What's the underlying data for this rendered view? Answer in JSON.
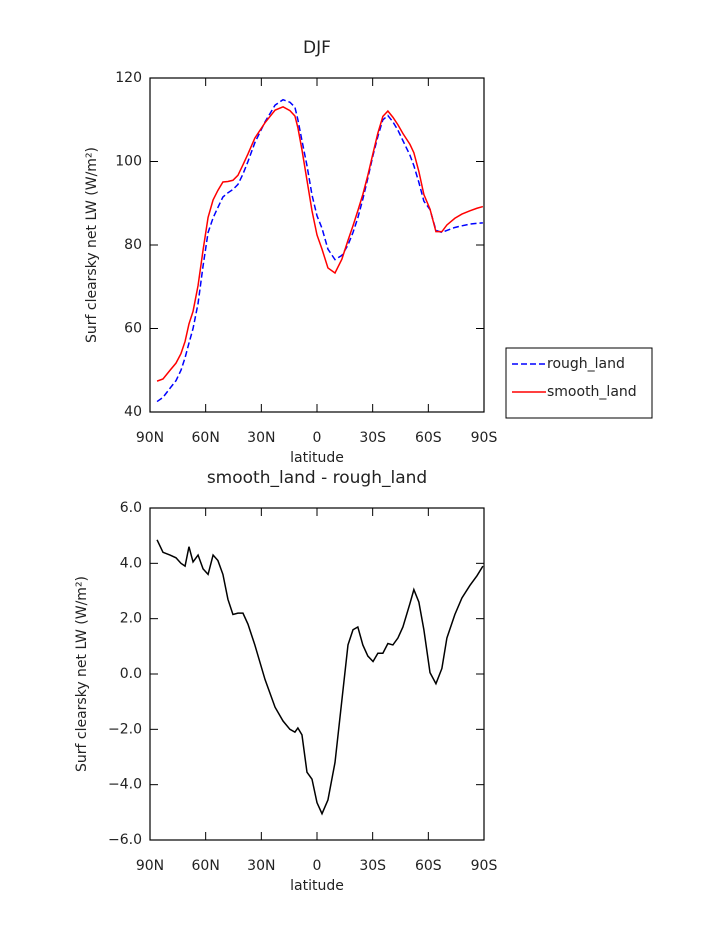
{
  "chart_data": [
    {
      "type": "line",
      "title": "DJF",
      "xlabel": "latitude",
      "ylabel": "Surf clearsky net LW (W/m²)",
      "x": [
        86.2,
        83,
        79.2,
        76,
        73.3,
        71.1,
        69,
        66.8,
        64.1,
        61.4,
        58.7,
        56,
        53.4,
        50.7,
        48,
        45.3,
        42.6,
        39.9,
        37.2,
        33.5,
        28,
        22.6,
        18.3,
        14.6,
        11.9,
        10.3,
        8.1,
        5.4,
        2.7,
        0,
        -2.7,
        -5.9,
        -9.7,
        -13.4,
        -16.7,
        -19.4,
        -22,
        -24.7,
        -27.4,
        -30.2,
        -32.8,
        -35.5,
        -38.2,
        -40.9,
        -43.6,
        -46.3,
        -50.1,
        -52.2,
        -54.9,
        -57.6,
        -60.9,
        -64.1,
        -67.3,
        -70,
        -74.3,
        -78.1,
        -82.4,
        -86.2,
        -89.4
      ],
      "series": [
        {
          "name": "rough_land",
          "color": "#0000ff",
          "line_style": "dashed",
          "values": [
            42.5,
            43.5,
            45.7,
            47.5,
            50,
            53,
            56.5,
            60,
            66,
            75,
            83,
            86.5,
            89,
            91.5,
            92.5,
            93.3,
            94.5,
            97,
            100,
            104.5,
            109.5,
            113.5,
            114.8,
            114.2,
            113,
            110,
            105,
            99,
            92,
            87,
            84,
            79,
            76.5,
            77.5,
            80,
            83,
            86.5,
            91,
            96,
            101.5,
            106,
            110,
            111,
            109.5,
            107.5,
            105,
            101.5,
            99,
            95,
            90.5,
            88.5,
            83.5,
            83,
            83.5,
            84.2,
            84.6,
            85,
            85.2,
            85.3
          ]
        },
        {
          "name": "smooth_land",
          "color": "#ff0000",
          "line_style": "solid",
          "values": [
            47.4,
            47.9,
            50.0,
            51.7,
            54.0,
            56.9,
            61.1,
            64.1,
            70.3,
            78.8,
            86.6,
            90.8,
            93.1,
            95.1,
            95.2,
            95.5,
            96.7,
            99.2,
            101.8,
            105.6,
            109.3,
            112.3,
            113.1,
            112.2,
            110.9,
            108.1,
            102.8,
            95.5,
            88.2,
            82.4,
            79.0,
            74.5,
            73.3,
            76.6,
            81.1,
            84.6,
            88.2,
            92.1,
            96.7,
            102.0,
            106.8,
            110.8,
            112.1,
            110.6,
            108.8,
            106.7,
            104.1,
            102.1,
            97.6,
            92.1,
            88.6,
            83.2,
            83.2,
            84.8,
            86.4,
            87.4,
            88.2,
            88.8,
            89.2
          ]
        }
      ],
      "xlim": [
        90,
        -90
      ],
      "xticks": [
        {
          "value": 90,
          "label": "90N"
        },
        {
          "value": 60,
          "label": "60N"
        },
        {
          "value": 30,
          "label": "30N"
        },
        0,
        {
          "value": -30,
          "label": "30S"
        },
        {
          "value": -60,
          "label": "60S"
        },
        {
          "value": -90,
          "label": "90S"
        }
      ],
      "ylim": [
        40,
        120
      ],
      "yticks": [
        40,
        60,
        80,
        100,
        120
      ],
      "legend": "right"
    },
    {
      "type": "line",
      "title": "smooth_land - rough_land",
      "xlabel": "latitude",
      "ylabel": "Surf clearsky net LW (W/m²)",
      "x": [
        86.2,
        83,
        79.2,
        76,
        73.3,
        71.1,
        69,
        66.8,
        64.1,
        61.4,
        58.7,
        56,
        53.4,
        50.7,
        48,
        45.3,
        42.6,
        39.9,
        37.2,
        33.5,
        28,
        22.6,
        18.3,
        14.6,
        11.9,
        10.3,
        8.1,
        5.4,
        2.7,
        0,
        -2.7,
        -5.9,
        -9.7,
        -13.4,
        -16.7,
        -19.4,
        -22,
        -24.7,
        -27.4,
        -30.2,
        -32.8,
        -35.5,
        -38.2,
        -40.9,
        -43.6,
        -46.3,
        -50.1,
        -52.2,
        -54.9,
        -57.6,
        -60.9,
        -64.1,
        -67.3,
        -70,
        -74.3,
        -78.1,
        -82.4,
        -86.2,
        -89.4
      ],
      "series": [
        {
          "color": "#000000",
          "line_style": "solid",
          "values": [
            4.85,
            4.4,
            4.3,
            4.2,
            4.0,
            3.9,
            4.6,
            4.05,
            4.3,
            3.8,
            3.6,
            4.3,
            4.1,
            3.6,
            2.7,
            2.15,
            2.2,
            2.2,
            1.8,
            1.05,
            -0.2,
            -1.2,
            -1.7,
            -2.0,
            -2.1,
            -1.95,
            -2.2,
            -3.55,
            -3.8,
            -4.65,
            -5.05,
            -4.55,
            -3.2,
            -0.95,
            1.05,
            1.6,
            1.7,
            1.05,
            0.65,
            0.45,
            0.75,
            0.75,
            1.1,
            1.05,
            1.3,
            1.7,
            2.55,
            3.05,
            2.6,
            1.6,
            0.05,
            -0.35,
            0.2,
            1.3,
            2.15,
            2.75,
            3.2,
            3.55,
            3.9
          ]
        }
      ],
      "xlim": [
        90,
        -90
      ],
      "xticks": [
        {
          "value": 90,
          "label": "90N"
        },
        {
          "value": 60,
          "label": "60N"
        },
        {
          "value": 30,
          "label": "30N"
        },
        0,
        {
          "value": -30,
          "label": "30S"
        },
        {
          "value": -60,
          "label": "60S"
        },
        {
          "value": -90,
          "label": "90S"
        }
      ],
      "ylim": [
        -6,
        6
      ],
      "yticks": [
        {
          "value": -6,
          "label": "−6.0"
        },
        {
          "value": -4,
          "label": "−4.0"
        },
        {
          "value": -2,
          "label": "−2.0"
        },
        {
          "value": 0,
          "label": "0.0"
        },
        {
          "value": 2,
          "label": "2.0"
        },
        {
          "value": 4,
          "label": "4.0"
        },
        {
          "value": 6,
          "label": "6.0"
        }
      ]
    }
  ]
}
